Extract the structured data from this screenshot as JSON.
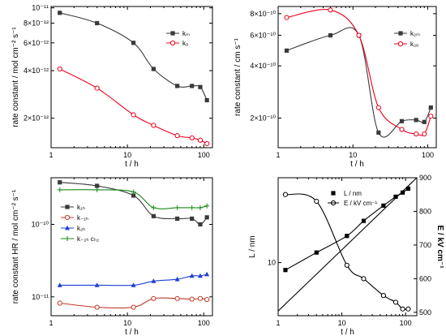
{
  "chart_data": [
    {
      "type": "line",
      "xlabel": "t / h",
      "ylabel": "rate constant / mol cm⁻² s⁻¹",
      "xscale": "log",
      "yscale": "log",
      "xlim": [
        1,
        130
      ],
      "ylim": [
        1.3e-12,
        1.02e-11
      ],
      "xticks": [
        {
          "v": 1,
          "label": "1"
        },
        {
          "v": 10,
          "label": "10"
        },
        {
          "v": 100,
          "label": "100"
        }
      ],
      "yticks": [
        {
          "v": 1e-11,
          "label": "10⁻¹¹"
        },
        {
          "v": 8e-12,
          "label": "8×10⁻¹²"
        },
        {
          "v": 6e-12,
          "label": "6×10⁻¹²"
        },
        {
          "v": 4e-12,
          "label": "4×10⁻¹²"
        },
        {
          "v": 2e-12,
          "label": "2×10⁻¹²"
        }
      ],
      "legend": "top-right",
      "series": [
        {
          "name": "kₘ",
          "color": "#3a3a3a",
          "marker": "square-filled",
          "x": [
            1.3,
            4,
            12,
            22,
            45,
            70,
            90,
            110
          ],
          "y": [
            9.3e-12,
            8e-12,
            6e-12,
            4.1e-12,
            3.2e-12,
            3.2e-12,
            3.15e-12,
            2.6e-12
          ]
        },
        {
          "name": "kₒ",
          "color": "#e8001c",
          "marker": "circle-open",
          "x": [
            1.3,
            4,
            12,
            22,
            45,
            70,
            90,
            110
          ],
          "y": [
            4.1e-12,
            3.1e-12,
            2.1e-12,
            1.8e-12,
            1.55e-12,
            1.5e-12,
            1.45e-12,
            1.38e-12
          ]
        }
      ]
    },
    {
      "type": "line",
      "xlabel": "t / h",
      "ylabel": "rate constant  / cm s⁻¹",
      "xscale": "log",
      "yscale": "log",
      "xlim": [
        1,
        130
      ],
      "ylim": [
        1.35e-10,
        8.8e-10
      ],
      "xticks": [
        {
          "v": 1,
          "label": "1"
        },
        {
          "v": 10,
          "label": "10"
        },
        {
          "v": 100,
          "label": "100"
        }
      ],
      "yticks": [
        {
          "v": 8e-10,
          "label": "8×10⁻¹⁰"
        },
        {
          "v": 6e-10,
          "label": "6×10⁻¹⁰"
        },
        {
          "v": 4e-10,
          "label": "4×10⁻¹⁰"
        },
        {
          "v": 2e-10,
          "label": "2×10⁻¹⁰"
        }
      ],
      "legend": "right",
      "series": [
        {
          "name": "k₂ₘ",
          "color": "#3a3a3a",
          "marker": "square-filled",
          "x": [
            1.3,
            5,
            12,
            22,
            45,
            70,
            90,
            110
          ],
          "y": [
            4.9e-10,
            6e-10,
            6e-10,
            1.65e-10,
            1.92e-10,
            1.95e-10,
            1.9e-10,
            2.3e-10
          ]
        },
        {
          "name": "k₂ₒ",
          "color": "#e8001c",
          "marker": "circle-open",
          "x": [
            1.3,
            5,
            12,
            22,
            45,
            70,
            90,
            110
          ],
          "y": [
            7.6e-10,
            8.4e-10,
            6e-10,
            2.3e-10,
            1.72e-10,
            1.62e-10,
            1.62e-10,
            2.05e-10
          ]
        }
      ]
    },
    {
      "type": "line",
      "xlabel": "t / h",
      "ylabel": "rate constant HR / mol cm⁻² s⁻¹",
      "xscale": "log",
      "yscale": "log",
      "xlim": [
        1,
        130
      ],
      "ylim": [
        5.5e-12,
        4.4e-10
      ],
      "xticks": [
        {
          "v": 1,
          "label": "1"
        },
        {
          "v": 10,
          "label": "10"
        },
        {
          "v": 100,
          "label": "100"
        }
      ],
      "yticks": [
        {
          "v": 1e-10,
          "label": "10⁻¹⁰"
        },
        {
          "v": 1e-11,
          "label": "10⁻¹¹"
        }
      ],
      "legend": "left",
      "series": [
        {
          "name": "k₁ₕ",
          "color": "#3a3a3a",
          "marker": "square-filled",
          "x": [
            1.3,
            4,
            12,
            22,
            45,
            70,
            90,
            110
          ],
          "y": [
            3.8e-10,
            3.4e-10,
            2.5e-10,
            1.3e-10,
            1.2e-10,
            1.2e-10,
            1e-10,
            1.25e-10
          ]
        },
        {
          "name": "k₋₁ₕ",
          "color": "#c0392b",
          "marker": "circle-open",
          "x": [
            1.3,
            4,
            12,
            22,
            45,
            70,
            90,
            110
          ],
          "y": [
            8.2e-12,
            7.2e-12,
            7.2e-12,
            9.5e-12,
            9.5e-12,
            9.3e-12,
            9.5e-12,
            9.2e-12
          ]
        },
        {
          "name": "k₂ₕ",
          "color": "#1f3fd1",
          "marker": "triangle-filled",
          "x": [
            1.3,
            4,
            12,
            22,
            45,
            70,
            90,
            110
          ],
          "y": [
            1.45e-11,
            1.45e-11,
            1.45e-11,
            1.65e-11,
            1.75e-11,
            1.95e-11,
            1.95e-11,
            2.05e-11
          ]
        },
        {
          "name": "k₋₂ₕ cₕ₂",
          "color": "#1a8a1a",
          "marker": "cross",
          "x": [
            1.3,
            4,
            12,
            22,
            45,
            70,
            90,
            110
          ],
          "y": [
            3e-10,
            3e-10,
            2.8e-10,
            1.7e-10,
            1.7e-10,
            1.7e-10,
            1.7e-10,
            1.8e-10
          ]
        }
      ]
    },
    {
      "type": "scatter",
      "xlabel": "t / h",
      "ylabel": "L / nm",
      "y2label": "E / kV cm⁻¹",
      "xscale": "log",
      "yscale": "log",
      "xlim": [
        1,
        150
      ],
      "ylim": [
        5.5,
        26
      ],
      "y2lim": [
        490,
        900
      ],
      "xticks": [
        {
          "v": 1,
          "label": "1"
        },
        {
          "v": 10,
          "label": "10"
        },
        {
          "v": 100,
          "label": "100"
        }
      ],
      "yticks": [
        {
          "v": 10,
          "label": "10"
        }
      ],
      "y2ticks": [
        {
          "v": 500,
          "label": "500"
        },
        {
          "v": 600,
          "label": "600"
        },
        {
          "v": 700,
          "label": "700"
        },
        {
          "v": 800,
          "label": "800"
        },
        {
          "v": 900,
          "label": "900"
        }
      ],
      "legend": "top-right",
      "series": [
        {
          "name": "L / nm",
          "color": "#000000",
          "marker": "square-filled",
          "axis": "left",
          "x": [
            1.3,
            4,
            12,
            22,
            45,
            70,
            90,
            110
          ],
          "y": [
            9.2,
            11.2,
            13.5,
            16,
            19,
            21,
            22,
            23
          ]
        },
        {
          "name": "E / kV cm⁻¹",
          "color": "#000000",
          "marker": "circle-open",
          "axis": "right",
          "x": [
            1.3,
            4,
            12,
            22,
            45,
            70,
            90,
            110
          ],
          "y": [
            850,
            830,
            640,
            600,
            550,
            530,
            510,
            510
          ]
        },
        {
          "name": "",
          "color": "#000000",
          "marker": "none",
          "axis": "left",
          "x": [
            1,
            150
          ],
          "y": [
            5.8,
            26
          ]
        }
      ]
    }
  ]
}
